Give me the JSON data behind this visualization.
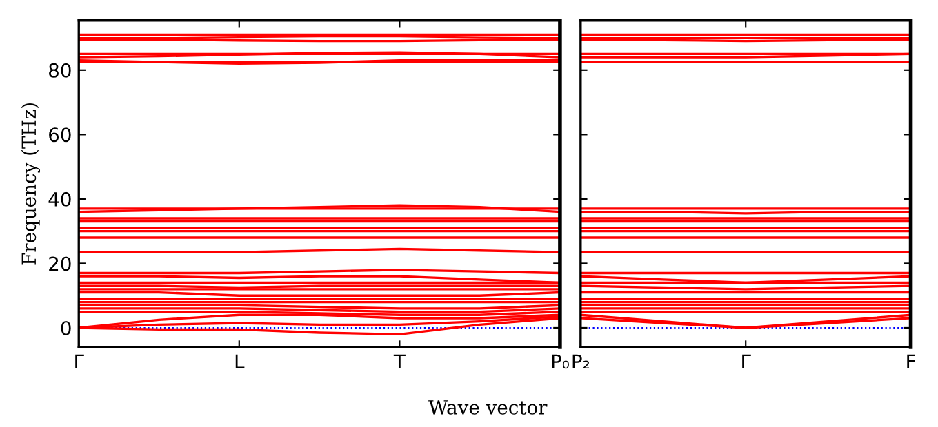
{
  "chart_data": [
    {
      "type": "line",
      "ylabel": "Frequency (THz)",
      "xlabel": "Wave vector",
      "categories": [
        "Γ",
        null,
        "L",
        null,
        "T",
        null,
        "P₀"
      ],
      "ylim": [
        -6,
        95.4
      ],
      "yticks": [
        0,
        20,
        40,
        60,
        80
      ],
      "grid": false,
      "legend": false,
      "marker": "none",
      "line_style": "solid",
      "ref_lines": [
        {
          "axis": "y",
          "value": 0,
          "color": "#0000ff",
          "line_style": "dotted"
        }
      ],
      "series": [
        {
          "color": "#ff0000",
          "values": [
            91,
            91,
            91,
            91,
            91,
            91,
            91
          ]
        },
        {
          "color": "#ff0000",
          "values": [
            90,
            90,
            90.3,
            90.5,
            90.5,
            90.2,
            90
          ]
        },
        {
          "color": "#ff0000",
          "values": [
            89.5,
            89.5,
            89.2,
            89,
            89,
            89.3,
            89.5
          ]
        },
        {
          "color": "#ff0000",
          "values": [
            85,
            85,
            85,
            85,
            85,
            85,
            85
          ]
        },
        {
          "color": "#ff0000",
          "values": [
            84,
            84.3,
            84.8,
            85.3,
            85.5,
            85,
            84
          ]
        },
        {
          "color": "#ff0000",
          "values": [
            83,
            82.5,
            82,
            82.3,
            83,
            83,
            83
          ]
        },
        {
          "color": "#ff0000",
          "values": [
            82.5,
            82.5,
            82.5,
            82.5,
            82.5,
            82.5,
            82.5
          ]
        },
        {
          "color": "#ff0000",
          "values": [
            37,
            37,
            37,
            37,
            37,
            37,
            37
          ]
        },
        {
          "color": "#ff0000",
          "values": [
            36,
            36.5,
            37,
            37.5,
            38,
            37.5,
            36
          ]
        },
        {
          "color": "#ff0000",
          "values": [
            34,
            34,
            34,
            34,
            34,
            34,
            34
          ]
        },
        {
          "color": "#ff0000",
          "values": [
            33,
            33,
            33,
            33,
            33,
            33,
            33
          ]
        },
        {
          "color": "#ff0000",
          "values": [
            31,
            31,
            31,
            31,
            31,
            31,
            31
          ]
        },
        {
          "color": "#ff0000",
          "values": [
            30,
            30,
            30,
            30,
            30,
            30,
            30
          ]
        },
        {
          "color": "#ff0000",
          "values": [
            28,
            28,
            28,
            28,
            28,
            28,
            28
          ]
        },
        {
          "color": "#ff0000",
          "values": [
            23.5,
            23.5,
            23.5,
            24,
            24.5,
            24,
            23.5
          ]
        },
        {
          "color": "#ff0000",
          "values": [
            17,
            17,
            17,
            17.5,
            18,
            17.5,
            17
          ]
        },
        {
          "color": "#ff0000",
          "values": [
            16,
            16,
            15.5,
            16,
            16,
            15,
            14
          ]
        },
        {
          "color": "#ff0000",
          "values": [
            14,
            14,
            14,
            14,
            14,
            14,
            14
          ]
        },
        {
          "color": "#ff0000",
          "values": [
            13,
            13,
            12.5,
            13,
            13,
            13,
            13
          ]
        },
        {
          "color": "#ff0000",
          "values": [
            12,
            12,
            12,
            12,
            12,
            12,
            12
          ]
        },
        {
          "color": "#ff0000",
          "values": [
            11,
            11,
            10,
            10,
            10,
            10,
            11
          ]
        },
        {
          "color": "#ff0000",
          "values": [
            9,
            9,
            9,
            9,
            9,
            9,
            9
          ]
        },
        {
          "color": "#ff0000",
          "values": [
            8,
            8,
            8,
            8,
            8,
            8,
            8
          ]
        },
        {
          "color": "#ff0000",
          "values": [
            7,
            7,
            7,
            6.5,
            6,
            6,
            7
          ]
        },
        {
          "color": "#ff0000",
          "values": [
            6,
            6,
            6,
            5.5,
            5,
            5,
            6
          ]
        },
        {
          "color": "#ff0000",
          "values": [
            5,
            5,
            5,
            4.5,
            4,
            4,
            5
          ]
        },
        {
          "color": "#ff0000",
          "values": [
            0,
            2.5,
            4,
            4,
            3,
            3,
            4
          ]
        },
        {
          "color": "#ff0000",
          "values": [
            0,
            1,
            1.5,
            1,
            1,
            2,
            3.5
          ]
        },
        {
          "color": "#ff0000",
          "values": [
            0,
            -0.5,
            -0.5,
            -1.5,
            -2,
            1,
            3
          ]
        }
      ]
    },
    {
      "type": "line",
      "categories": [
        "P₂",
        null,
        "Γ",
        null,
        "F"
      ],
      "ylim": [
        -6,
        95.4
      ],
      "yticks": [
        0,
        20,
        40,
        60,
        80
      ],
      "tick_labels": "x",
      "grid": false,
      "legend": false,
      "marker": "none",
      "line_style": "solid",
      "ref_lines": [
        {
          "axis": "y",
          "value": 0,
          "color": "#0000ff",
          "line_style": "dotted"
        }
      ],
      "series": [
        {
          "color": "#ff0000",
          "values": [
            91,
            91,
            91,
            91,
            91
          ]
        },
        {
          "color": "#ff0000",
          "values": [
            90,
            90,
            90,
            90,
            90
          ]
        },
        {
          "color": "#ff0000",
          "values": [
            89.5,
            89.3,
            89,
            89.3,
            89.5
          ]
        },
        {
          "color": "#ff0000",
          "values": [
            85,
            85,
            85,
            85,
            85
          ]
        },
        {
          "color": "#ff0000",
          "values": [
            84,
            84,
            84,
            84.5,
            85
          ]
        },
        {
          "color": "#ff0000",
          "values": [
            82.5,
            82.5,
            82.5,
            82.5,
            82.5
          ]
        },
        {
          "color": "#ff0000",
          "values": [
            37,
            37,
            37,
            37,
            37
          ]
        },
        {
          "color": "#ff0000",
          "values": [
            36,
            36,
            35.5,
            36,
            36
          ]
        },
        {
          "color": "#ff0000",
          "values": [
            34,
            34,
            34,
            34,
            34
          ]
        },
        {
          "color": "#ff0000",
          "values": [
            33,
            33,
            33,
            33,
            33
          ]
        },
        {
          "color": "#ff0000",
          "values": [
            31,
            31,
            31,
            31,
            31
          ]
        },
        {
          "color": "#ff0000",
          "values": [
            30,
            30,
            30,
            30,
            30
          ]
        },
        {
          "color": "#ff0000",
          "values": [
            28,
            28,
            28,
            28,
            28
          ]
        },
        {
          "color": "#ff0000",
          "values": [
            23.5,
            23.5,
            23.5,
            23.5,
            23.5
          ]
        },
        {
          "color": "#ff0000",
          "values": [
            17,
            17,
            17,
            17,
            17
          ]
        },
        {
          "color": "#ff0000",
          "values": [
            16,
            15,
            14,
            15,
            16
          ]
        },
        {
          "color": "#ff0000",
          "values": [
            14,
            14,
            14,
            14,
            14
          ]
        },
        {
          "color": "#ff0000",
          "values": [
            13,
            12.5,
            12,
            12.5,
            13
          ]
        },
        {
          "color": "#ff0000",
          "values": [
            11,
            11,
            11,
            11,
            11
          ]
        },
        {
          "color": "#ff0000",
          "values": [
            9,
            9,
            9,
            9,
            9
          ]
        },
        {
          "color": "#ff0000",
          "values": [
            8,
            8,
            8,
            8,
            8
          ]
        },
        {
          "color": "#ff0000",
          "values": [
            7,
            7,
            7,
            7,
            7
          ]
        },
        {
          "color": "#ff0000",
          "values": [
            6,
            6,
            6,
            6,
            6
          ]
        },
        {
          "color": "#ff0000",
          "values": [
            5,
            5,
            5,
            5,
            5
          ]
        },
        {
          "color": "#ff0000",
          "values": [
            4,
            2,
            0,
            2,
            4
          ]
        },
        {
          "color": "#ff0000",
          "values": [
            3,
            1.5,
            0,
            1.5,
            3
          ]
        }
      ]
    }
  ]
}
